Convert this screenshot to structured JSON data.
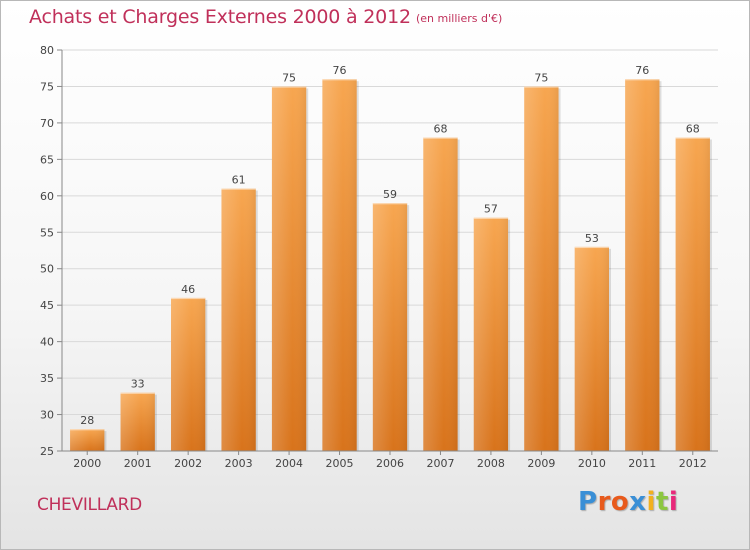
{
  "header": {
    "title": "Achats et Charges Externes 2000 à 2012",
    "subtitle": "(en milliers d'€)"
  },
  "footer": {
    "commune": "CHEVILLARD",
    "logo_letters": [
      "P",
      "r",
      "o",
      "x",
      "i",
      "t",
      "i"
    ],
    "logo_colors": [
      "#3a8fd6",
      "#e85a1c",
      "#e85a1c",
      "#3a8fd6",
      "#f2b01e",
      "#8cc63f",
      "#e8287a"
    ]
  },
  "chart_data": {
    "type": "bar",
    "title": "Achats et Charges Externes 2000 à 2012",
    "subtitle": "(en milliers d'€)",
    "categories": [
      "2000",
      "2001",
      "2002",
      "2003",
      "2004",
      "2005",
      "2006",
      "2007",
      "2008",
      "2009",
      "2010",
      "2011",
      "2012"
    ],
    "values": [
      28,
      33,
      46,
      61,
      75,
      76,
      59,
      68,
      57,
      75,
      53,
      76,
      68
    ],
    "ylim": [
      25,
      80
    ],
    "yticks": [
      25,
      30,
      35,
      40,
      45,
      50,
      55,
      60,
      65,
      70,
      75,
      80
    ],
    "grid": true,
    "bar_color_top": "#f7a650",
    "bar_color_bottom": "#d8731b"
  }
}
